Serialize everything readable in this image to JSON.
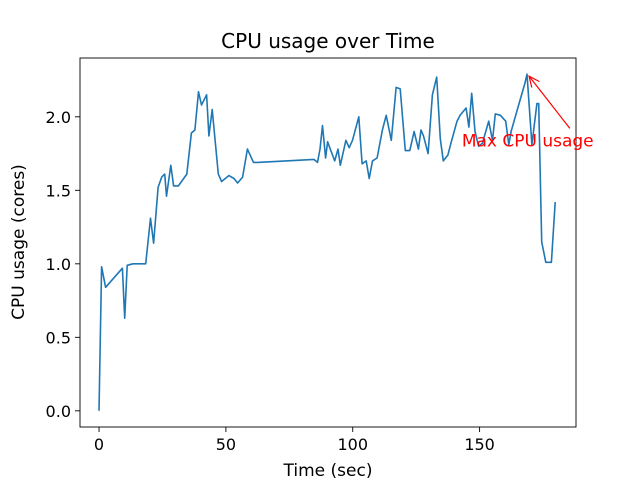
{
  "chart_data": {
    "type": "line",
    "title": "CPU usage over Time",
    "xlabel": "Time (sec)",
    "ylabel": "CPU usage (cores)",
    "xlim": [
      -7.5,
      188
    ],
    "ylim": [
      -0.11,
      2.4
    ],
    "xticks": [
      0,
      50,
      100,
      150
    ],
    "yticks": [
      0.0,
      0.5,
      1.0,
      1.5,
      2.0
    ],
    "xtick_labels": [
      "0",
      "50",
      "100",
      "150"
    ],
    "ytick_labels": [
      "0.0",
      "0.5",
      "1.0",
      "1.5",
      "2.0"
    ],
    "grid": false,
    "line_color": "#1f77b4",
    "annotation": {
      "text": "Max CPU usage",
      "color": "#ff0000",
      "point": [
        168.7,
        2.29
      ],
      "text_at": [
        143,
        1.84
      ]
    },
    "series": [
      {
        "x": [
          0,
          1,
          2.6,
          9.2,
          10.1,
          11.1,
          13.4,
          16,
          18.4,
          20.3,
          21.5,
          23.3,
          24.7,
          25.9,
          26.6,
          28.3,
          29.4,
          31.3,
          34.6,
          36.4,
          37.8,
          39.2,
          40.4,
          42.4,
          43.3,
          44.6,
          47,
          48.3,
          51.2,
          53.2,
          54.6,
          56.6,
          58.5,
          60.9,
          62.5,
          84.7,
          86.1,
          87.1,
          88.1,
          89.3,
          90.1,
          92.9,
          94.2,
          95.1,
          97.3,
          98.6,
          99.9,
          102.4,
          103.7,
          105.3,
          106.5,
          107.8,
          109.6,
          111.7,
          113.2,
          115.2,
          117.1,
          118.7,
          120.7,
          122.5,
          124.2,
          125.9,
          126.9,
          127.9,
          129.7,
          131.4,
          133.1,
          134.5,
          135.7,
          137.5,
          138.7,
          141.1,
          142.3,
          144.7,
          145.8,
          146.9,
          148.2,
          149.6,
          151.1,
          153.6,
          155.1,
          156.2,
          158.2,
          160.3,
          161.5,
          162.4,
          165.9,
          167.9,
          168.7,
          170.6,
          172.6,
          173.3,
          174.5,
          176.1,
          178.3,
          179.8
        ],
        "y": [
          0.0,
          0.98,
          0.84,
          0.97,
          0.63,
          0.99,
          1.0,
          1.0,
          1.0,
          1.31,
          1.14,
          1.52,
          1.59,
          1.61,
          1.46,
          1.67,
          1.53,
          1.53,
          1.61,
          1.89,
          1.91,
          2.17,
          2.08,
          2.15,
          1.87,
          2.05,
          1.61,
          1.56,
          1.6,
          1.58,
          1.55,
          1.59,
          1.78,
          1.69,
          1.69,
          1.71,
          1.69,
          1.78,
          1.94,
          1.72,
          1.83,
          1.7,
          1.78,
          1.67,
          1.84,
          1.79,
          1.84,
          2.0,
          1.68,
          1.7,
          1.58,
          1.7,
          1.72,
          1.91,
          2.01,
          1.84,
          2.2,
          2.19,
          1.77,
          1.77,
          1.9,
          1.78,
          1.91,
          1.87,
          1.75,
          2.15,
          2.27,
          1.85,
          1.7,
          1.74,
          1.82,
          1.97,
          2.01,
          2.06,
          1.93,
          2.16,
          1.9,
          1.8,
          1.82,
          1.97,
          1.84,
          2.02,
          2.01,
          1.97,
          1.81,
          1.9,
          2.11,
          2.23,
          2.29,
          1.81,
          2.09,
          2.09,
          1.15,
          1.01,
          1.01,
          1.42
        ]
      }
    ]
  }
}
